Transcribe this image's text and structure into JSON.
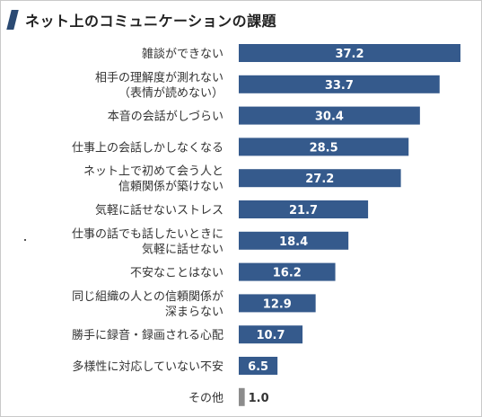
{
  "title": "ネット上のコミュニケーションの課題",
  "colors": {
    "bar": "#355a8c",
    "bar_other": "#8c8c8c",
    "title_mark": "#2b4a73"
  },
  "chart_data": {
    "type": "bar",
    "orientation": "horizontal",
    "title": "ネット上のコミュニケーションの課題",
    "categories": [
      [
        "雑談ができない"
      ],
      [
        "相手の理解度が測れない",
        "（表情が読めない）"
      ],
      [
        "本音の会話がしづらい"
      ],
      [
        "仕事上の会話しかしなくなる"
      ],
      [
        "ネット上で初めて会う人と",
        "信頼関係が築けない"
      ],
      [
        "気軽に話せないストレス"
      ],
      [
        "仕事の話でも話したいときに",
        "気軽に話せない"
      ],
      [
        "不安なことはない"
      ],
      [
        "同じ組織の人との信頼関係が",
        "深まらない"
      ],
      [
        "勝手に録音・録画される心配"
      ],
      [
        "多様性に対応していない不安"
      ],
      [
        "その他"
      ]
    ],
    "values": [
      37.2,
      33.7,
      30.4,
      28.5,
      27.2,
      21.7,
      18.4,
      16.2,
      12.9,
      10.7,
      6.5,
      1.0
    ],
    "value_labels": [
      "37.2",
      "33.7",
      "30.4",
      "28.5",
      "27.2",
      "21.7",
      "18.4",
      "16.2",
      "12.9",
      "10.7",
      "6.5",
      "1.0"
    ],
    "xlim": [
      0,
      37.2
    ],
    "grid": false,
    "legend": "none"
  }
}
